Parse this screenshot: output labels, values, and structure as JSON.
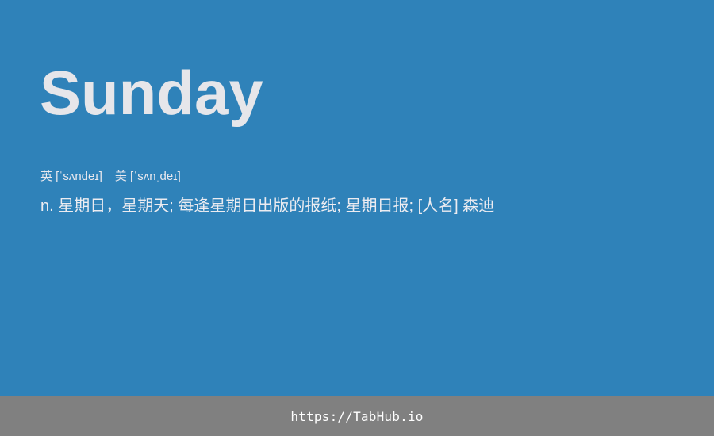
{
  "entry": {
    "word": "Sunday",
    "phonetic_uk": "英 [ˈsʌndeɪ]",
    "phonetic_us": "美 [ˈsʌnˌdeɪ]",
    "definition": "n. 星期日，星期天; 每逢星期日出版的报纸; 星期日报; [人名] 森迪"
  },
  "footer": {
    "url": "https://TabHub.io"
  },
  "colors": {
    "background": "#2f82b9",
    "footer_background": "#808080",
    "text": "#e6e6ea"
  }
}
